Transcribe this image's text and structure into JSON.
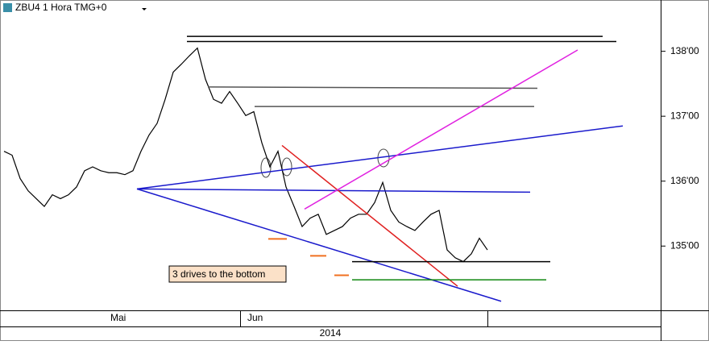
{
  "chart_data": {
    "type": "line",
    "title": "ZBU4 1 Hora TMG+0",
    "categories": [
      null,
      null,
      null,
      null,
      null,
      null,
      null,
      null,
      null,
      null,
      null,
      null,
      null,
      "Mai",
      null,
      null,
      null,
      null,
      null,
      null,
      null,
      null,
      null,
      null,
      null,
      null,
      null,
      null,
      null,
      null,
      "Jun",
      null,
      null,
      null,
      null,
      null,
      null,
      null,
      null,
      null,
      null,
      null,
      null,
      null,
      null,
      null,
      null,
      null,
      null,
      null,
      null,
      null,
      null,
      null,
      null,
      null,
      null,
      null,
      null,
      null,
      null
    ],
    "year_label": "2014",
    "series": [
      {
        "color": "#000000",
        "values": [
          136.46,
          136.4,
          136.04,
          135.85,
          135.73,
          135.61,
          135.79,
          135.73,
          135.79,
          135.91,
          136.16,
          136.22,
          136.16,
          136.13,
          136.13,
          136.1,
          136.16,
          136.46,
          136.71,
          136.89,
          137.26,
          137.68,
          137.8,
          137.93,
          138.05,
          137.57,
          137.26,
          137.2,
          137.38,
          137.2,
          137.01,
          137.07,
          136.59,
          136.22,
          136.46,
          135.91,
          135.61,
          135.3,
          135.43,
          135.49,
          135.18,
          135.24,
          135.3,
          135.43,
          135.49,
          135.49,
          135.67,
          135.98,
          135.55,
          135.37,
          135.3,
          135.24,
          135.37,
          135.49,
          135.55,
          134.94,
          134.82,
          134.76,
          134.88,
          135.12,
          134.94
        ]
      }
    ],
    "ylim": [
      134.01,
      138.79
    ],
    "yticks": [
      {
        "value": 135,
        "label": "135'00"
      },
      {
        "value": 136,
        "label": "136'00"
      },
      {
        "value": 137,
        "label": "137'00"
      },
      {
        "value": 138,
        "label": "138'00"
      }
    ],
    "trendlines": [
      {
        "x": [
          22.7,
          74.3
        ],
        "y": [
          138.23,
          138.23
        ],
        "color": "#000000"
      },
      {
        "x": [
          22.7,
          76
        ],
        "y": [
          138.15,
          138.15
        ],
        "color": "#000000"
      },
      {
        "x": [
          25.3,
          66.2
        ],
        "y": [
          137.45,
          137.43
        ],
        "color": "#555555"
      },
      {
        "x": [
          31.1,
          65.8
        ],
        "y": [
          137.15,
          137.15
        ],
        "color": "#555555"
      },
      {
        "x": [
          16.5,
          76.8
        ],
        "y": [
          135.88,
          136.85
        ],
        "color": "#1a1acc"
      },
      {
        "x": [
          16.5,
          65.3
        ],
        "y": [
          135.88,
          135.83
        ],
        "color": "#1a1acc"
      },
      {
        "x": [
          16.5,
          61.7
        ],
        "y": [
          135.88,
          134.15
        ],
        "color": "#1a1acc"
      },
      {
        "x": [
          34.5,
          56.3
        ],
        "y": [
          136.55,
          134.38
        ],
        "color": "#e02020"
      },
      {
        "x": [
          37.3,
          71.2
        ],
        "y": [
          135.57,
          138.02
        ],
        "color": "#e020e0"
      },
      {
        "x": [
          43.2,
          67.8
        ],
        "y": [
          134.76,
          134.76
        ],
        "color": "#000000"
      },
      {
        "x": [
          43.2,
          67.3
        ],
        "y": [
          134.48,
          134.48
        ],
        "color": "#118811"
      },
      {
        "x": [
          32.8,
          35.1
        ],
        "y": [
          135.11,
          135.11
        ],
        "color": "#f07020"
      },
      {
        "x": [
          38,
          40
        ],
        "y": [
          134.85,
          134.85
        ],
        "color": "#f07020"
      },
      {
        "x": [
          41,
          42.8
        ],
        "y": [
          134.55,
          134.55
        ],
        "color": "#f07020"
      }
    ],
    "annotation": "3 drives to the bottom"
  }
}
